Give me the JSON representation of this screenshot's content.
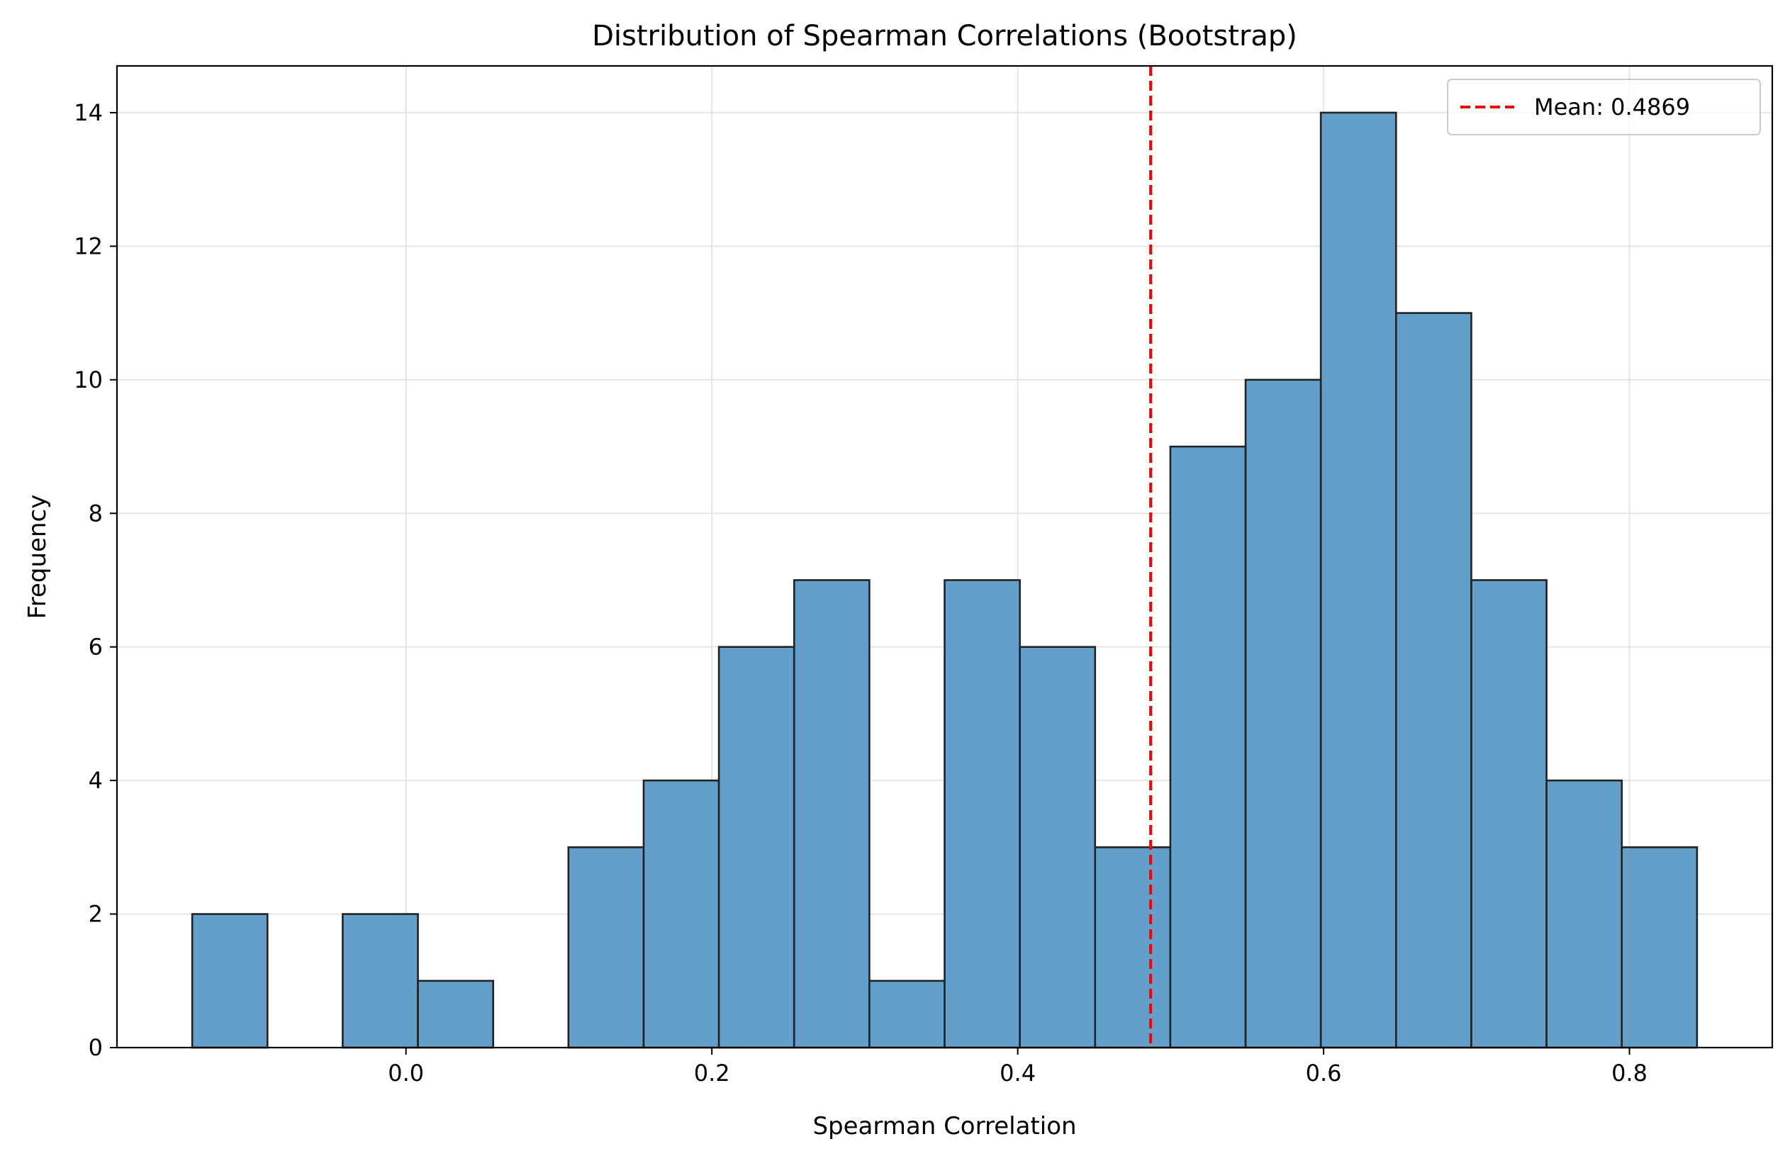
{
  "chart_data": {
    "type": "bar",
    "subtype": "histogram",
    "title": "Distribution of Spearman Correlations (Bootstrap)",
    "xlabel": "Spearman Correlation",
    "ylabel": "Frequency",
    "bin_edges": [
      -0.1398,
      -0.0906,
      -0.0414,
      0.0078,
      0.057,
      0.1062,
      0.1554,
      0.2046,
      0.2538,
      0.303,
      0.3522,
      0.4014,
      0.4506,
      0.4998,
      0.549,
      0.5982,
      0.6474,
      0.6966,
      0.7458,
      0.795,
      0.8442
    ],
    "values": [
      2,
      0,
      2,
      1,
      0,
      3,
      4,
      6,
      7,
      1,
      7,
      6,
      3,
      9,
      10,
      14,
      11,
      7,
      4,
      3
    ],
    "xlim": [
      -0.189,
      0.8934
    ],
    "ylim": [
      0,
      14.7
    ],
    "xticks": [
      0.0,
      0.2,
      0.4,
      0.6,
      0.8
    ],
    "xtick_labels": [
      "0.0",
      "0.2",
      "0.4",
      "0.6",
      "0.8"
    ],
    "yticks": [
      0,
      2,
      4,
      6,
      8,
      10,
      12,
      14
    ],
    "ytick_labels": [
      "0",
      "2",
      "4",
      "6",
      "8",
      "10",
      "12",
      "14"
    ],
    "mean_value": 0.4869,
    "grid": true,
    "legend": {
      "position": "top-right",
      "entries": [
        "Mean: 0.4869"
      ]
    },
    "colors": {
      "bar_fill": "#62a0cb",
      "bar_edge": "#222222",
      "mean_line": "#ff0000",
      "grid": "#e0e0e0"
    }
  }
}
